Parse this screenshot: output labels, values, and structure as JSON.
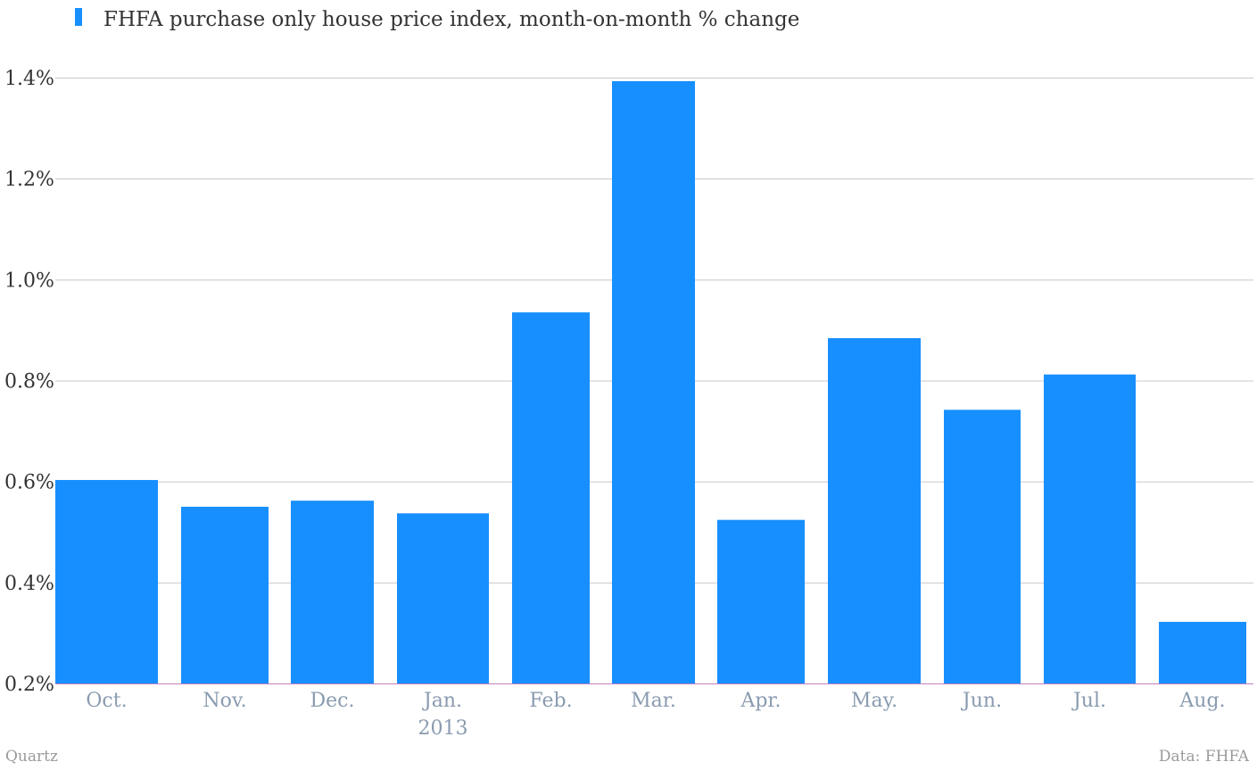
{
  "chart_data": {
    "type": "bar",
    "legend": {
      "label": "FHFA purchase only house price index, month-on-month % change",
      "color": "#178fff",
      "position": "top-left"
    },
    "categories": [
      "Oct.",
      "Nov.",
      "Dec.",
      "Jan.",
      "Feb.",
      "Mar.",
      "Apr.",
      "May.",
      "Jun.",
      "Jul.",
      "Aug."
    ],
    "category_sublabels": [
      "",
      "",
      "",
      "2013",
      "",
      "",
      "",
      "",
      "",
      "",
      ""
    ],
    "series": [
      {
        "name": "FHFA purchase only house price index, month-on-month % change",
        "color": "#178fff",
        "values": [
          0.603,
          0.55,
          0.562,
          0.537,
          0.935,
          1.393,
          0.524,
          0.884,
          0.742,
          0.812,
          0.322
        ]
      }
    ],
    "ylim": [
      0.2,
      1.4
    ],
    "yticks": [
      0.2,
      0.4,
      0.6,
      0.8,
      1.0,
      1.2,
      1.4
    ],
    "ytick_labels": [
      "0.2%",
      "0.4%",
      "0.6%",
      "0.8%",
      "1.0%",
      "1.2%",
      "1.4%"
    ],
    "grid": true,
    "colors": {
      "bar": "#178fff",
      "grid": "#c8c8c8",
      "baseline": "#c080c0",
      "xtick": "#8a9bb0"
    }
  },
  "footer": {
    "source_left": "Quartz",
    "source_right": "Data: FHFA"
  }
}
